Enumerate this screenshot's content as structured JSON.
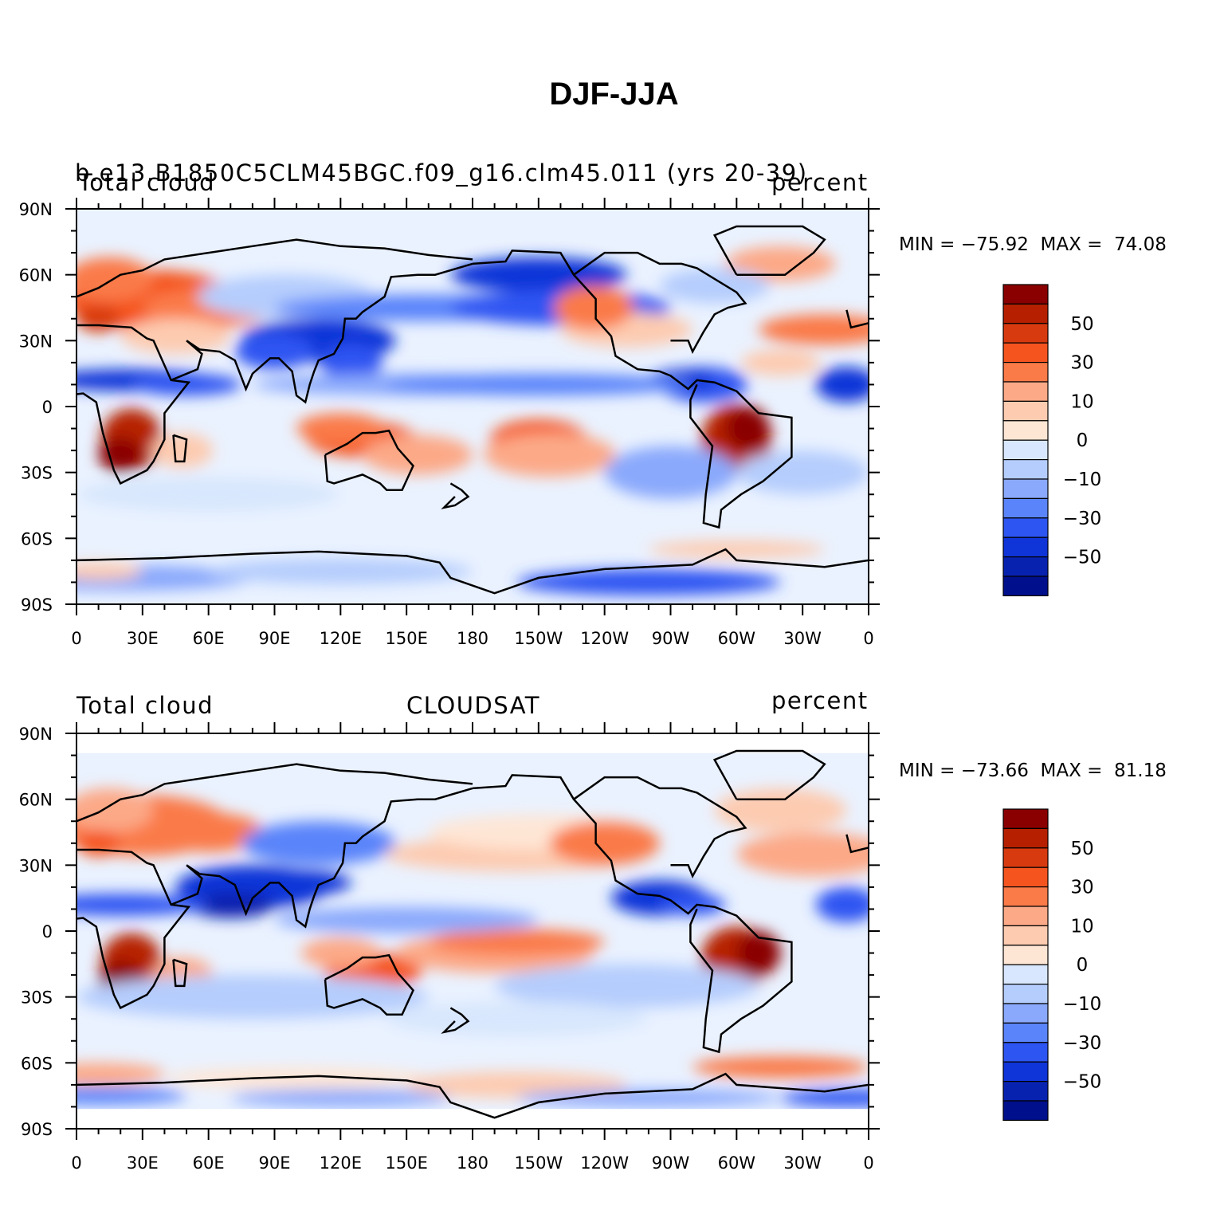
{
  "title": "DJF-JJA",
  "panels": [
    {
      "left_text": "Total cloud",
      "center_text": "b.e13.B1850C5CLM45BGC.f09_g16.clm45.011 (yrs 20-39)",
      "right_text": "percent",
      "min_label": "MIN =",
      "min_value": "−75.92",
      "max_label": "MAX =",
      "max_value": "74.08"
    },
    {
      "left_text": "Total cloud",
      "center_text": "CLOUDSAT",
      "right_text": "percent",
      "min_label": "MIN =",
      "min_value": "−73.66",
      "max_label": "MAX =",
      "max_value": "81.18"
    }
  ],
  "lat_ticks": [
    "90N",
    "60N",
    "30N",
    "0",
    "30S",
    "60S",
    "90S"
  ],
  "lon_ticks": [
    "0",
    "30E",
    "60E",
    "90E",
    "120E",
    "150E",
    "180",
    "150W",
    "120W",
    "90W",
    "60W",
    "30W",
    "0"
  ],
  "colorbar": {
    "labels": [
      "50",
      "30",
      "10",
      "0",
      "−10",
      "−30",
      "−50"
    ],
    "colors": [
      "#8a0000",
      "#b62000",
      "#d83a10",
      "#f5541f",
      "#fa7a48",
      "#fca987",
      "#fdcbb0",
      "#fee6d5",
      "#d8e7fd",
      "#b5cdfd",
      "#8aa9fc",
      "#5a84fa",
      "#2d55f2",
      "#0f34d8",
      "#0822b0",
      "#000f8c"
    ]
  },
  "colors": {
    "land_outline": "#000000",
    "neutral_ocean": "#eaf2ff"
  }
}
